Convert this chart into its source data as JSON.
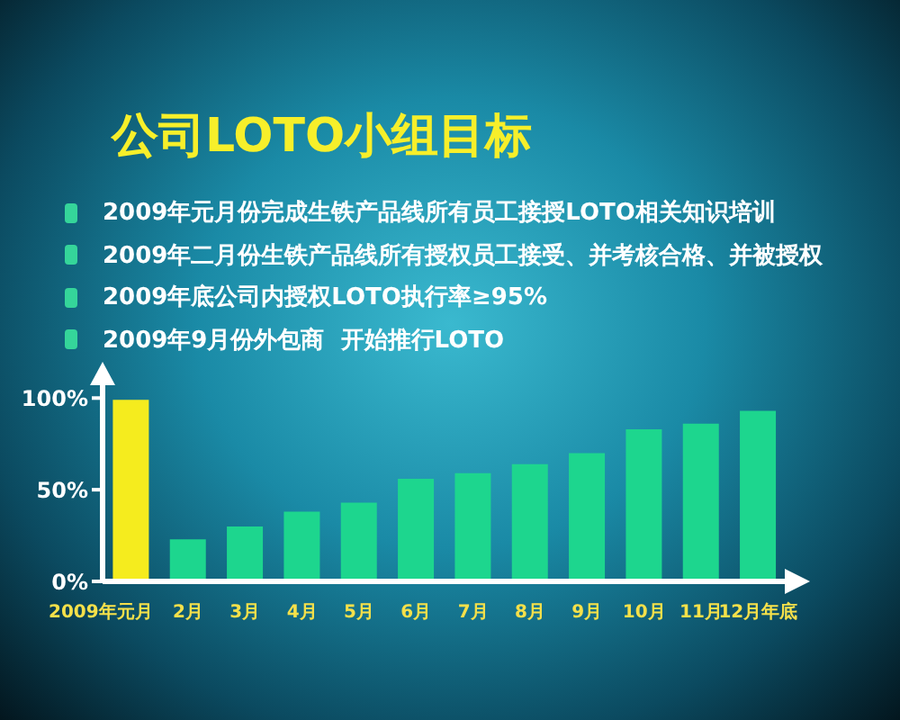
{
  "chart_data": {
    "type": "bar",
    "title": "公司LOTO小组目标",
    "annotations": [
      "2009年元月份完成生铁产品线所有员工接授LOTO相关知识培训",
      "2009年二月份生铁产品线所有授权员工接受、并考核合格、并被授权",
      "2009年底公司内授权LOTO执行率≥95%",
      "2009年9月份外包商  开始推行LOTO"
    ],
    "categories": [
      "2009年元月",
      "2月",
      "3月",
      "4月",
      "5月",
      "6月",
      "7月",
      "8月",
      "9月",
      "10月",
      "11月",
      "12月年底"
    ],
    "values": [
      99,
      23,
      30,
      38,
      43,
      56,
      59,
      64,
      70,
      83,
      86,
      93
    ],
    "colors": [
      "#f5ec1e",
      "#1dd68e",
      "#1dd68e",
      "#1dd68e",
      "#1dd68e",
      "#1dd68e",
      "#1dd68e",
      "#1dd68e",
      "#1dd68e",
      "#1dd68e",
      "#1dd68e",
      "#1dd68e"
    ],
    "ylim": [
      0,
      108
    ],
    "yticks": [
      {
        "value": 0,
        "label": "0%"
      },
      {
        "value": 50,
        "label": "50%"
      },
      {
        "value": 100,
        "label": "100%"
      }
    ]
  }
}
